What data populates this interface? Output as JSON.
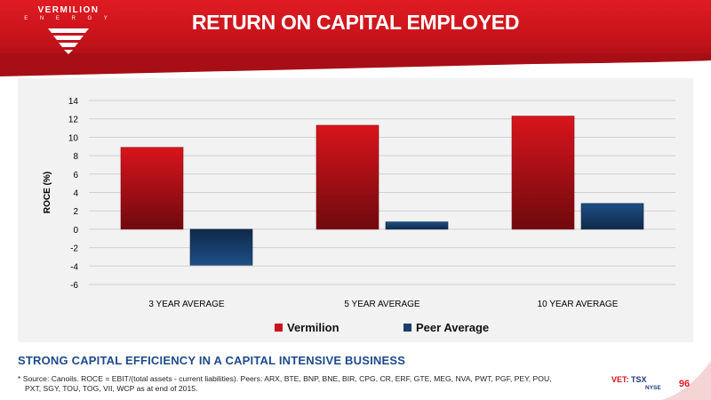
{
  "brand": {
    "name": "VERMILION",
    "sub": "E N E R G Y"
  },
  "title": "RETURN ON CAPITAL EMPLOYED",
  "chart_data": {
    "type": "bar",
    "title": "",
    "xlabel": "",
    "ylabel": "ROCE (%)",
    "ylim": [
      -6,
      14
    ],
    "yticks": [
      14,
      12,
      10,
      8,
      6,
      4,
      2,
      0,
      -2,
      -4,
      -6
    ],
    "categories": [
      "3 YEAR AVERAGE",
      "5  YEAR AVERAGE",
      "10  YEAR AVERAGE"
    ],
    "series": [
      {
        "name": "Vermilion",
        "color": "#c8141b",
        "values": [
          8.9,
          11.3,
          12.3
        ]
      },
      {
        "name": "Peer Average",
        "color": "#1b3f6b",
        "values": [
          -3.9,
          0.8,
          2.8
        ]
      }
    ],
    "grid": true,
    "legend": "bottom"
  },
  "tagline": "STRONG CAPITAL EFFICIENCY IN A CAPITAL INTENSIVE BUSINESS",
  "footnote": {
    "line1": "*  Source: Canoils. ROCE = EBIT/(total assets - current liabilities).  Peers: ARX, BTE, BNP, BNE, BIR, CPG, CR, ERF, GTE, MEG, NVA, PWT, PGF, PEY, POU,",
    "line2": "PXT, SGY, TOU, TOG, VII, WCP as at end of 2015."
  },
  "ticker": {
    "vet": "VET:",
    "tsx": "TSX",
    "nyse": "NYSE"
  },
  "page_number": "96",
  "colors": {
    "brand_red": "#e01b22",
    "navy": "#1d4a8c"
  }
}
